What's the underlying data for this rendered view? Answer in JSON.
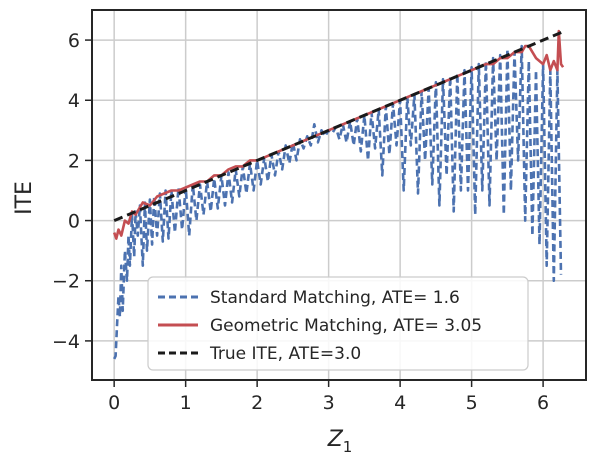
{
  "chart_data": {
    "type": "line",
    "xlabel": "Z",
    "xlabel_subscript": "1",
    "ylabel": "ITE",
    "xlim": [
      -0.31,
      6.6
    ],
    "ylim": [
      -5.3,
      7.0
    ],
    "xticks": [
      0,
      1,
      2,
      3,
      4,
      5,
      6
    ],
    "yticks": [
      -4,
      -2,
      0,
      2,
      4,
      6
    ],
    "ytick_labels": [
      "−4",
      "−2",
      "0",
      "2",
      "4",
      "6"
    ],
    "grid": true,
    "legend_position": "lower-center",
    "series": [
      {
        "name": "Standard Matching, ATE= 1.6",
        "color": "#4c72b0",
        "dash": "dashed",
        "x": [
          0.0,
          0.02,
          0.04,
          0.06,
          0.08,
          0.1,
          0.12,
          0.15,
          0.18,
          0.2,
          0.22,
          0.25,
          0.28,
          0.3,
          0.33,
          0.36,
          0.4,
          0.43,
          0.46,
          0.5,
          0.53,
          0.56,
          0.6,
          0.64,
          0.68,
          0.72,
          0.76,
          0.8,
          0.85,
          0.9,
          0.95,
          1.0,
          1.05,
          1.1,
          1.15,
          1.2,
          1.25,
          1.3,
          1.35,
          1.4,
          1.45,
          1.5,
          1.55,
          1.6,
          1.65,
          1.7,
          1.75,
          1.8,
          1.85,
          1.9,
          1.95,
          2.0,
          2.05,
          2.1,
          2.15,
          2.2,
          2.25,
          2.3,
          2.35,
          2.4,
          2.45,
          2.5,
          2.55,
          2.6,
          2.65,
          2.7,
          2.75,
          2.8,
          2.85,
          2.9,
          2.95,
          3.0,
          3.05,
          3.1,
          3.15,
          3.2,
          3.25,
          3.3,
          3.35,
          3.4,
          3.45,
          3.5,
          3.55,
          3.6,
          3.65,
          3.7,
          3.75,
          3.8,
          3.85,
          3.9,
          3.95,
          4.0,
          4.05,
          4.1,
          4.15,
          4.2,
          4.25,
          4.3,
          4.35,
          4.4,
          4.45,
          4.5,
          4.55,
          4.6,
          4.65,
          4.7,
          4.75,
          4.8,
          4.85,
          4.9,
          4.95,
          5.0,
          5.05,
          5.1,
          5.15,
          5.2,
          5.25,
          5.3,
          5.35,
          5.4,
          5.45,
          5.5,
          5.55,
          5.6,
          5.65,
          5.7,
          5.75,
          5.8,
          5.85,
          5.9,
          5.95,
          6.0,
          6.05,
          6.1,
          6.15,
          6.2,
          6.25
        ],
        "y": [
          -4.6,
          -4.5,
          -3.5,
          -2.5,
          -3.2,
          -1.5,
          -3.0,
          -1.0,
          -2.0,
          -0.5,
          -1.5,
          0.2,
          -1.2,
          0.3,
          -0.5,
          0.5,
          -1.5,
          0.6,
          -1.0,
          0.7,
          -0.8,
          0.8,
          -0.5,
          0.9,
          -0.7,
          1.0,
          -0.6,
          1.0,
          -0.4,
          1.1,
          -0.3,
          1.1,
          -0.5,
          1.2,
          0.0,
          1.2,
          0.2,
          1.3,
          0.3,
          1.4,
          0.4,
          1.5,
          0.5,
          1.6,
          0.6,
          1.7,
          0.8,
          1.8,
          0.9,
          1.9,
          1.0,
          2.0,
          1.2,
          2.1,
          1.3,
          2.2,
          1.5,
          2.3,
          1.7,
          2.5,
          1.9,
          2.6,
          2.0,
          2.7,
          2.4,
          2.8,
          2.5,
          3.2,
          2.6,
          3.0,
          2.8,
          3.0,
          2.9,
          3.1,
          2.7,
          3.2,
          2.6,
          3.3,
          2.5,
          3.4,
          2.3,
          3.5,
          2.0,
          3.6,
          2.4,
          3.7,
          1.5,
          3.8,
          2.2,
          3.9,
          2.5,
          4.0,
          1.0,
          4.1,
          2.5,
          4.2,
          0.9,
          4.3,
          2.0,
          4.4,
          1.2,
          4.6,
          0.5,
          4.7,
          1.5,
          4.8,
          0.3,
          4.9,
          1.0,
          5.0,
          1.0,
          5.1,
          0.2,
          5.2,
          1.0,
          5.3,
          0.5,
          5.4,
          2.0,
          5.5,
          0.2,
          5.7,
          1.0,
          5.6,
          2.0,
          5.8,
          0.0,
          5.3,
          -0.5,
          5.0,
          -0.8,
          5.2,
          -1.5,
          5.0,
          -2.0,
          5.0,
          -1.8
        ]
      },
      {
        "name": "Geometric Matching, ATE= 3.05",
        "color": "#c44e52",
        "dash": "solid",
        "x": [
          0.0,
          0.03,
          0.06,
          0.1,
          0.15,
          0.2,
          0.25,
          0.3,
          0.35,
          0.4,
          0.5,
          0.6,
          0.7,
          0.8,
          0.9,
          1.0,
          1.1,
          1.2,
          1.3,
          1.4,
          1.5,
          1.6,
          1.7,
          1.8,
          1.9,
          2.0,
          2.2,
          2.4,
          2.6,
          2.8,
          3.0,
          3.2,
          3.4,
          3.6,
          3.8,
          4.0,
          4.2,
          4.4,
          4.6,
          4.8,
          5.0,
          5.1,
          5.2,
          5.3,
          5.4,
          5.5,
          5.6,
          5.7,
          5.75,
          5.8,
          5.9,
          6.0,
          6.05,
          6.1,
          6.15,
          6.2,
          6.22,
          6.25,
          6.28
        ],
        "y": [
          -0.4,
          -0.6,
          -0.3,
          -0.5,
          0.0,
          -0.1,
          0.3,
          0.2,
          0.4,
          0.6,
          0.5,
          0.8,
          0.9,
          1.0,
          1.0,
          1.1,
          1.2,
          1.3,
          1.3,
          1.5,
          1.5,
          1.7,
          1.8,
          1.8,
          2.0,
          2.0,
          2.2,
          2.4,
          2.6,
          2.8,
          3.0,
          3.2,
          3.4,
          3.6,
          3.8,
          4.0,
          4.2,
          4.4,
          4.6,
          4.8,
          5.0,
          5.1,
          5.2,
          5.2,
          5.4,
          5.4,
          5.6,
          5.6,
          5.8,
          5.8,
          5.4,
          5.2,
          5.5,
          5.0,
          5.3,
          5.0,
          6.3,
          5.2,
          5.1
        ]
      },
      {
        "name": "True ITE, ATE=3.0",
        "color": "#1a1a1a",
        "dash": "dashed",
        "x": [
          0.0,
          6.28
        ],
        "y": [
          0.0,
          6.28
        ]
      }
    ]
  }
}
